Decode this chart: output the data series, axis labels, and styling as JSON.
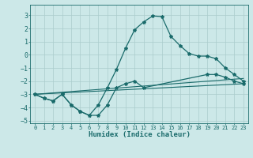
{
  "xlabel": "Humidex (Indice chaleur)",
  "bg_color": "#cce8e8",
  "grid_color": "#aacccc",
  "line_color": "#1a6b6b",
  "xlim": [
    -0.5,
    23.5
  ],
  "ylim": [
    -5.2,
    3.8
  ],
  "xticks": [
    0,
    1,
    2,
    3,
    4,
    5,
    6,
    7,
    8,
    9,
    10,
    11,
    12,
    13,
    14,
    15,
    16,
    17,
    18,
    19,
    20,
    21,
    22,
    23
  ],
  "yticks": [
    -5,
    -4,
    -3,
    -2,
    -1,
    0,
    1,
    2,
    3
  ],
  "curve_main_x": [
    0,
    1,
    2,
    3,
    4,
    5,
    6,
    7,
    8,
    9,
    10,
    11,
    12,
    13,
    14,
    15,
    16,
    17,
    18,
    19,
    20,
    21,
    22,
    23
  ],
  "curve_main_y": [
    -3.0,
    -3.3,
    -3.5,
    -3.0,
    -3.8,
    -4.3,
    -4.6,
    -3.8,
    -2.5,
    -1.1,
    0.5,
    1.9,
    2.5,
    2.95,
    2.9,
    1.4,
    0.7,
    0.1,
    -0.1,
    -0.1,
    -0.3,
    -1.0,
    -1.5,
    -2.0
  ],
  "curve_lower_x": [
    0,
    1,
    2,
    3,
    4,
    5,
    6,
    7,
    8,
    9,
    10,
    11,
    12,
    19,
    20,
    21,
    22,
    23
  ],
  "curve_lower_y": [
    -3.0,
    -3.3,
    -3.5,
    -3.0,
    -3.8,
    -4.3,
    -4.6,
    -4.6,
    -3.8,
    -2.5,
    -2.2,
    -2.0,
    -2.5,
    -1.5,
    -1.5,
    -1.7,
    -2.0,
    -2.2
  ],
  "line1_x": [
    0,
    23
  ],
  "line1_y": [
    -3.0,
    -1.8
  ],
  "line2_x": [
    0,
    23
  ],
  "line2_y": [
    -3.0,
    -2.2
  ]
}
